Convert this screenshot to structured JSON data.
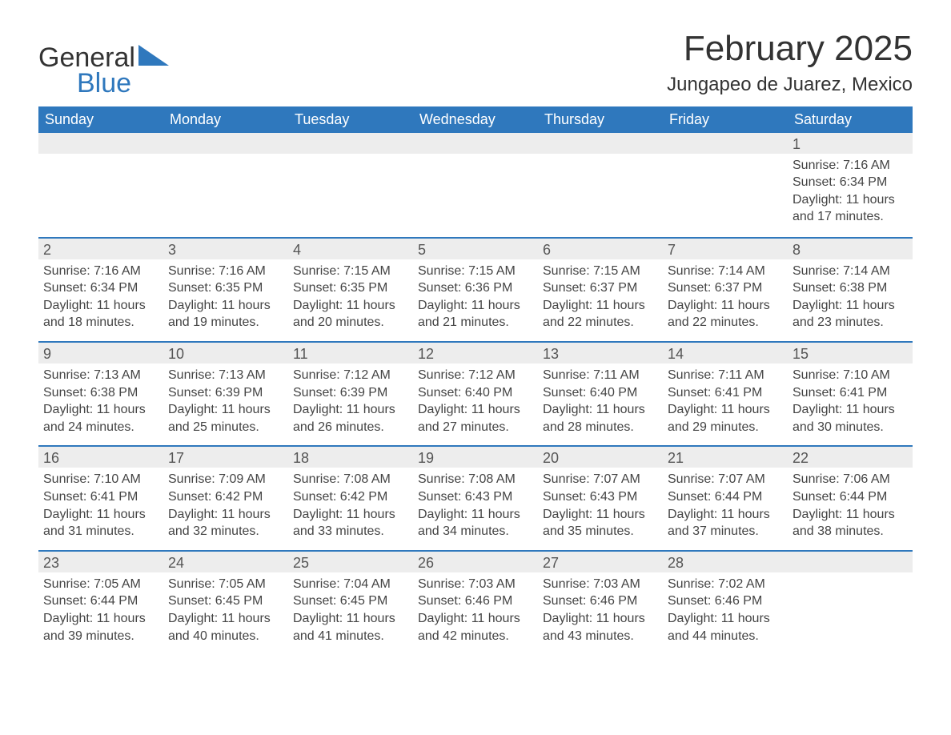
{
  "brand": {
    "line1": "General",
    "line2": "Blue",
    "accent_color": "#2f78bd"
  },
  "title": "February 2025",
  "location": "Jungapeo de Juarez, Mexico",
  "colors": {
    "header_bg": "#2f78bd",
    "header_text": "#ffffff",
    "daynum_bg": "#ededed",
    "text": "#444444",
    "page_bg": "#ffffff",
    "rule": "#2f78bd"
  },
  "fonts": {
    "title_pt": 44,
    "location_pt": 24,
    "header_pt": 18,
    "body_pt": 16
  },
  "day_headers": [
    "Sunday",
    "Monday",
    "Tuesday",
    "Wednesday",
    "Thursday",
    "Friday",
    "Saturday"
  ],
  "weeks": [
    [
      null,
      null,
      null,
      null,
      null,
      null,
      {
        "n": "1",
        "sunrise": "Sunrise: 7:16 AM",
        "sunset": "Sunset: 6:34 PM",
        "day1": "Daylight: 11 hours",
        "day2": "and 17 minutes."
      }
    ],
    [
      {
        "n": "2",
        "sunrise": "Sunrise: 7:16 AM",
        "sunset": "Sunset: 6:34 PM",
        "day1": "Daylight: 11 hours",
        "day2": "and 18 minutes."
      },
      {
        "n": "3",
        "sunrise": "Sunrise: 7:16 AM",
        "sunset": "Sunset: 6:35 PM",
        "day1": "Daylight: 11 hours",
        "day2": "and 19 minutes."
      },
      {
        "n": "4",
        "sunrise": "Sunrise: 7:15 AM",
        "sunset": "Sunset: 6:35 PM",
        "day1": "Daylight: 11 hours",
        "day2": "and 20 minutes."
      },
      {
        "n": "5",
        "sunrise": "Sunrise: 7:15 AM",
        "sunset": "Sunset: 6:36 PM",
        "day1": "Daylight: 11 hours",
        "day2": "and 21 minutes."
      },
      {
        "n": "6",
        "sunrise": "Sunrise: 7:15 AM",
        "sunset": "Sunset: 6:37 PM",
        "day1": "Daylight: 11 hours",
        "day2": "and 22 minutes."
      },
      {
        "n": "7",
        "sunrise": "Sunrise: 7:14 AM",
        "sunset": "Sunset: 6:37 PM",
        "day1": "Daylight: 11 hours",
        "day2": "and 22 minutes."
      },
      {
        "n": "8",
        "sunrise": "Sunrise: 7:14 AM",
        "sunset": "Sunset: 6:38 PM",
        "day1": "Daylight: 11 hours",
        "day2": "and 23 minutes."
      }
    ],
    [
      {
        "n": "9",
        "sunrise": "Sunrise: 7:13 AM",
        "sunset": "Sunset: 6:38 PM",
        "day1": "Daylight: 11 hours",
        "day2": "and 24 minutes."
      },
      {
        "n": "10",
        "sunrise": "Sunrise: 7:13 AM",
        "sunset": "Sunset: 6:39 PM",
        "day1": "Daylight: 11 hours",
        "day2": "and 25 minutes."
      },
      {
        "n": "11",
        "sunrise": "Sunrise: 7:12 AM",
        "sunset": "Sunset: 6:39 PM",
        "day1": "Daylight: 11 hours",
        "day2": "and 26 minutes."
      },
      {
        "n": "12",
        "sunrise": "Sunrise: 7:12 AM",
        "sunset": "Sunset: 6:40 PM",
        "day1": "Daylight: 11 hours",
        "day2": "and 27 minutes."
      },
      {
        "n": "13",
        "sunrise": "Sunrise: 7:11 AM",
        "sunset": "Sunset: 6:40 PM",
        "day1": "Daylight: 11 hours",
        "day2": "and 28 minutes."
      },
      {
        "n": "14",
        "sunrise": "Sunrise: 7:11 AM",
        "sunset": "Sunset: 6:41 PM",
        "day1": "Daylight: 11 hours",
        "day2": "and 29 minutes."
      },
      {
        "n": "15",
        "sunrise": "Sunrise: 7:10 AM",
        "sunset": "Sunset: 6:41 PM",
        "day1": "Daylight: 11 hours",
        "day2": "and 30 minutes."
      }
    ],
    [
      {
        "n": "16",
        "sunrise": "Sunrise: 7:10 AM",
        "sunset": "Sunset: 6:41 PM",
        "day1": "Daylight: 11 hours",
        "day2": "and 31 minutes."
      },
      {
        "n": "17",
        "sunrise": "Sunrise: 7:09 AM",
        "sunset": "Sunset: 6:42 PM",
        "day1": "Daylight: 11 hours",
        "day2": "and 32 minutes."
      },
      {
        "n": "18",
        "sunrise": "Sunrise: 7:08 AM",
        "sunset": "Sunset: 6:42 PM",
        "day1": "Daylight: 11 hours",
        "day2": "and 33 minutes."
      },
      {
        "n": "19",
        "sunrise": "Sunrise: 7:08 AM",
        "sunset": "Sunset: 6:43 PM",
        "day1": "Daylight: 11 hours",
        "day2": "and 34 minutes."
      },
      {
        "n": "20",
        "sunrise": "Sunrise: 7:07 AM",
        "sunset": "Sunset: 6:43 PM",
        "day1": "Daylight: 11 hours",
        "day2": "and 35 minutes."
      },
      {
        "n": "21",
        "sunrise": "Sunrise: 7:07 AM",
        "sunset": "Sunset: 6:44 PM",
        "day1": "Daylight: 11 hours",
        "day2": "and 37 minutes."
      },
      {
        "n": "22",
        "sunrise": "Sunrise: 7:06 AM",
        "sunset": "Sunset: 6:44 PM",
        "day1": "Daylight: 11 hours",
        "day2": "and 38 minutes."
      }
    ],
    [
      {
        "n": "23",
        "sunrise": "Sunrise: 7:05 AM",
        "sunset": "Sunset: 6:44 PM",
        "day1": "Daylight: 11 hours",
        "day2": "and 39 minutes."
      },
      {
        "n": "24",
        "sunrise": "Sunrise: 7:05 AM",
        "sunset": "Sunset: 6:45 PM",
        "day1": "Daylight: 11 hours",
        "day2": "and 40 minutes."
      },
      {
        "n": "25",
        "sunrise": "Sunrise: 7:04 AM",
        "sunset": "Sunset: 6:45 PM",
        "day1": "Daylight: 11 hours",
        "day2": "and 41 minutes."
      },
      {
        "n": "26",
        "sunrise": "Sunrise: 7:03 AM",
        "sunset": "Sunset: 6:46 PM",
        "day1": "Daylight: 11 hours",
        "day2": "and 42 minutes."
      },
      {
        "n": "27",
        "sunrise": "Sunrise: 7:03 AM",
        "sunset": "Sunset: 6:46 PM",
        "day1": "Daylight: 11 hours",
        "day2": "and 43 minutes."
      },
      {
        "n": "28",
        "sunrise": "Sunrise: 7:02 AM",
        "sunset": "Sunset: 6:46 PM",
        "day1": "Daylight: 11 hours",
        "day2": "and 44 minutes."
      },
      null
    ]
  ]
}
